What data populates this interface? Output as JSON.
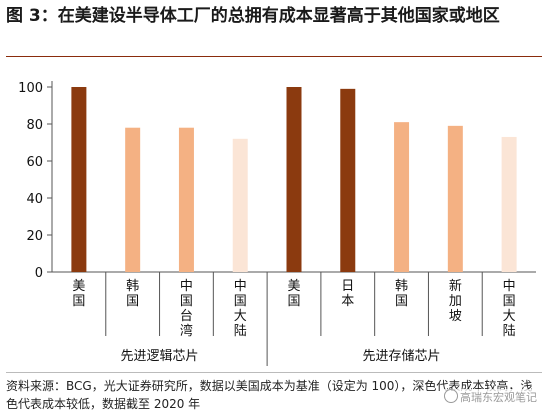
{
  "title": "图 3：在美建设半导体工厂的总拥有成本显著高于其他国家或地区",
  "footer": "资料来源：BCG，光大证券研究所，数据以美国成本为基准（设定为 100），深色代表成本较高，浅色代表成本较低，数据截至 2020 年",
  "watermark": "高瑞东宏观笔记",
  "colors": {
    "dark": "#8B3A0F",
    "mid": "#F4B183",
    "light": "#FBE5D6",
    "axis": "#555555"
  },
  "chart_data": {
    "type": "bar",
    "ylim": [
      0,
      100
    ],
    "yticks": [
      0,
      20,
      40,
      60,
      80,
      100
    ],
    "groups": [
      {
        "label": "先进逻辑芯片",
        "categories": [
          "美国",
          "韩国",
          "中国台湾",
          "中国大陆"
        ],
        "values": [
          100,
          78,
          78,
          72
        ],
        "shades": [
          "dark",
          "mid",
          "mid",
          "light"
        ]
      },
      {
        "label": "先进存储芯片",
        "categories": [
          "美国",
          "日本",
          "韩国",
          "新加坡",
          "中国大陆"
        ],
        "values": [
          100,
          99,
          81,
          79,
          73
        ],
        "shades": [
          "dark",
          "dark",
          "mid",
          "mid",
          "light"
        ]
      }
    ]
  }
}
